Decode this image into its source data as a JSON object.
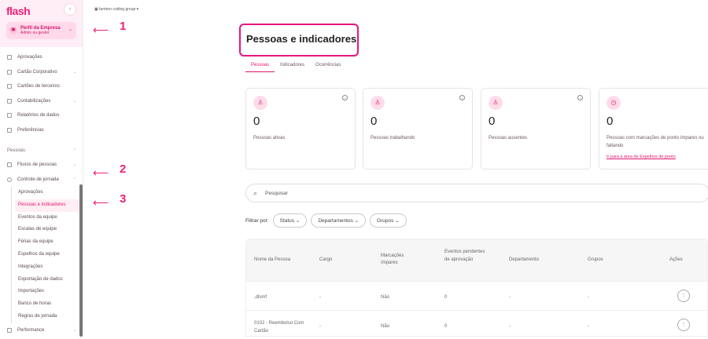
{
  "sidebar": {
    "logo": "flash",
    "profile_title": "Perfil da Empresa",
    "profile_sub": "Admin ou gestor",
    "items": [
      {
        "label": "Aprovações"
      },
      {
        "label": "Cartão Corporativo"
      },
      {
        "label": "Cartões de terceiros"
      },
      {
        "label": "Contabilizações"
      },
      {
        "label": "Relatórios de dados"
      },
      {
        "label": "Preferências"
      }
    ],
    "section": "Pessoas",
    "people_items": [
      {
        "label": "Fluxos de pessoas"
      },
      {
        "label": "Controle de jornada"
      }
    ],
    "sub_items": [
      "Aprovações",
      "Pessoas e indicadores",
      "Eventos da equipe",
      "Escalas de equipe",
      "Férias da equipe",
      "Espelhos da equipe",
      "Integrações",
      "Exportação de dados",
      "Importações",
      "Banco de horas",
      "Regras de jornada"
    ],
    "last_item": "Performance"
  },
  "annotations": [
    "1",
    "2",
    "3"
  ],
  "header": {
    "company": "bertero coding group"
  },
  "page_title": "Pessoas e indicadores",
  "tabs": [
    "Pessoas",
    "Indicadores",
    "Ocorrências"
  ],
  "cards": [
    {
      "value": "0",
      "label": "Pessoas ativas"
    },
    {
      "value": "0",
      "label": "Pessoas trabalhando"
    },
    {
      "value": "0",
      "label": "Pessoas ausentes"
    },
    {
      "value": "0",
      "label": "Pessoas com marcações de ponto ímpares ou faltando",
      "link": "Ir para a área de Espelhos de ponto"
    }
  ],
  "search": {
    "placeholder": "Pesquisar"
  },
  "filters": {
    "label": "Filtrar por:",
    "options": [
      "Status",
      "Departamentos",
      "Grupos"
    ]
  },
  "table": {
    "headers": [
      "Nome da Pessoa",
      "Cargo",
      "Marcações ímpares",
      "Eventos pendentes de aprovação",
      "Departamento",
      "Grupos",
      "Ações"
    ],
    "rows": [
      [
        ",dlsmf",
        "-",
        "Não",
        "0",
        "-",
        "-"
      ],
      [
        "0102 - Reembolso Com Cartão",
        "-",
        "Não",
        "0",
        "-",
        "-"
      ]
    ]
  },
  "colors": {
    "accent": "#e0156f"
  }
}
